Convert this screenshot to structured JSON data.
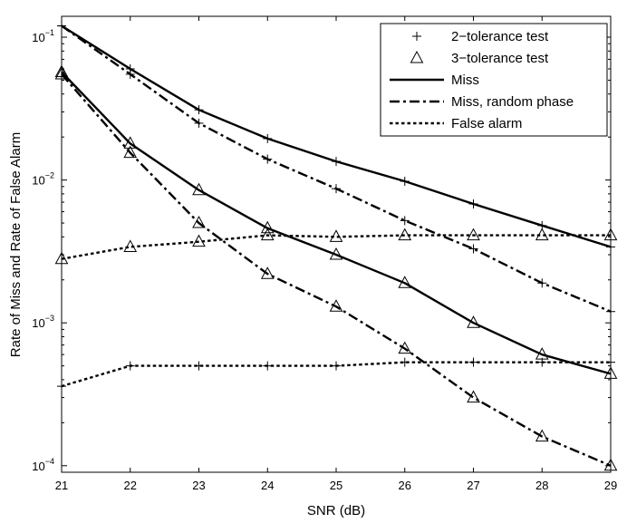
{
  "chart_data": {
    "type": "line",
    "title": "",
    "xlabel": "SNR (dB)",
    "ylabel": "Rate of Miss and Rate of False Alarm",
    "xscale": "linear",
    "yscale": "log",
    "xlim": [
      21,
      29
    ],
    "ylim": [
      9e-05,
      0.14
    ],
    "x": [
      21,
      22,
      23,
      24,
      25,
      26,
      27,
      28,
      29
    ],
    "x_tick_labels": [
      "21",
      "22",
      "23",
      "24",
      "25",
      "26",
      "27",
      "28",
      "29"
    ],
    "y_ticks": [
      {
        "value": 0.1,
        "base": "10",
        "exp": "−1"
      },
      {
        "value": 0.01,
        "base": "10",
        "exp": "−2"
      },
      {
        "value": 0.001,
        "base": "10",
        "exp": "−3"
      },
      {
        "value": 0.0001,
        "base": "10",
        "exp": "−4"
      }
    ],
    "legend_position": "top-right",
    "legend": {
      "markers": [
        {
          "label": "2−tolerance test",
          "marker": "plus"
        },
        {
          "label": "3−tolerance test",
          "marker": "triangle"
        }
      ],
      "lines": [
        {
          "label": "Miss",
          "style": "solid"
        },
        {
          "label": "Miss, random phase",
          "style": "dashdot"
        },
        {
          "label": "False alarm",
          "style": "dotted"
        }
      ]
    },
    "series": [
      {
        "name": "2-tolerance test, Miss",
        "style": "solid",
        "marker": "plus",
        "values": [
          0.12,
          0.06,
          0.031,
          0.0195,
          0.0135,
          0.0098,
          0.0068,
          0.0048,
          0.0034
        ]
      },
      {
        "name": "2-tolerance test, Miss, random phase",
        "style": "dashdot",
        "marker": "plus",
        "values": [
          0.12,
          0.055,
          0.025,
          0.014,
          0.0087,
          0.0052,
          0.0033,
          0.0019,
          0.0012
        ]
      },
      {
        "name": "2-tolerance test, False alarm",
        "style": "dotted",
        "marker": "plus",
        "values": [
          0.00036,
          0.0005,
          0.0005,
          0.0005,
          0.0005,
          0.00053,
          0.00053,
          0.00053,
          0.00053
        ]
      },
      {
        "name": "3-tolerance test, Miss",
        "style": "solid",
        "marker": "triangle",
        "values": [
          0.057,
          0.018,
          0.0085,
          0.0046,
          0.003,
          0.0019,
          0.001,
          0.0006,
          0.00044
        ]
      },
      {
        "name": "3-tolerance test, Miss, random phase",
        "style": "dashdot",
        "marker": "triangle",
        "values": [
          0.055,
          0.0155,
          0.005,
          0.0022,
          0.0013,
          0.00066,
          0.0003,
          0.00016,
          0.0001
        ]
      },
      {
        "name": "3-tolerance test, False alarm",
        "style": "dotted",
        "marker": "triangle",
        "values": [
          0.0028,
          0.0034,
          0.0037,
          0.0041,
          0.004,
          0.0041,
          0.0041,
          0.0041,
          0.0041
        ]
      }
    ],
    "colors": {
      "ink": "#000000",
      "background": "#ffffff"
    }
  }
}
